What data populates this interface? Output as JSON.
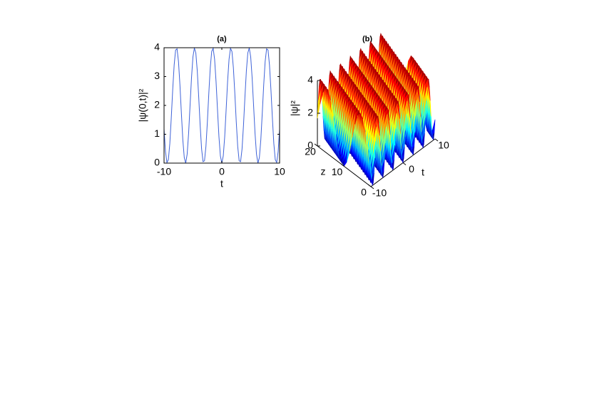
{
  "chart_data": [
    {
      "type": "line",
      "title": "(a)",
      "xlabel": "t",
      "ylabel": "|ψ(0,t)|²",
      "xlim": [
        -10,
        10
      ],
      "xticks": [
        -10,
        0,
        10
      ],
      "ylim": [
        0,
        4
      ],
      "yticks": [
        0,
        1,
        2,
        3,
        4
      ],
      "color": "#3f63d8",
      "x": [
        -10,
        -9.75,
        -9.5,
        -9.25,
        -9,
        -8.75,
        -8.5,
        -8.25,
        -8,
        -7.75,
        -7.5,
        -7.25,
        -7,
        -6.75,
        -6.5,
        -6.25,
        -6,
        -5.75,
        -5.5,
        -5.25,
        -5,
        -4.75,
        -4.5,
        -4.25,
        -4,
        -3.75,
        -3.5,
        -3.25,
        -3,
        -2.75,
        -2.5,
        -2.25,
        -2,
        -1.75,
        -1.5,
        -1.25,
        -1,
        -0.75,
        -0.5,
        -0.25,
        0,
        0.25,
        0.5,
        0.75,
        1,
        1.25,
        1.5,
        1.75,
        2,
        2.25,
        2.5,
        2.75,
        3,
        3.25,
        3.5,
        3.75,
        4,
        4.25,
        4.5,
        4.75,
        5,
        5.25,
        5.5,
        5.75,
        6,
        6.25,
        6.5,
        6.75,
        7,
        7.25,
        7.5,
        7.75,
        8,
        8.25,
        8.5,
        8.75,
        9,
        9.25,
        9.5,
        9.75,
        10
      ],
      "values": [
        1.18,
        0.4,
        0.02,
        0.12,
        0.68,
        1.57,
        2.55,
        3.4,
        3.92,
        3.96,
        3.52,
        2.71,
        1.73,
        0.81,
        0.19,
        0,
        0.31,
        1.03,
        1.99,
        2.95,
        3.68,
        3.99,
        3.82,
        3.2,
        2.29,
        1.31,
        0.49,
        0.05,
        0.08,
        0.58,
        1.43,
        2.42,
        3.31,
        3.87,
        3.98,
        3.6,
        2.83,
        1.86,
        0.92,
        0.25,
        0,
        0.25,
        0.92,
        1.86,
        2.83,
        3.6,
        3.98,
        3.87,
        3.31,
        2.42,
        1.43,
        0.58,
        0.08,
        0.05,
        0.49,
        1.31,
        2.29,
        3.2,
        3.82,
        3.99,
        3.68,
        2.95,
        1.99,
        1.03,
        0.31,
        0,
        0.19,
        0.81,
        1.73,
        2.71,
        3.52,
        3.96,
        3.92,
        3.4,
        2.55,
        1.57,
        0.68,
        0.12,
        0.02,
        0.4,
        1.18
      ]
    },
    {
      "type": "surface",
      "title": "(b)",
      "xlabel": "t",
      "ylabel": "z",
      "zlabel": "|ψ|²",
      "xlim": [
        -10,
        10
      ],
      "xticks": [
        -10,
        0,
        10
      ],
      "ylim": [
        0,
        20
      ],
      "yticks": [
        0,
        10,
        20
      ],
      "zlim": [
        0,
        4
      ],
      "zticks": [
        0,
        2,
        4
      ]
    }
  ]
}
